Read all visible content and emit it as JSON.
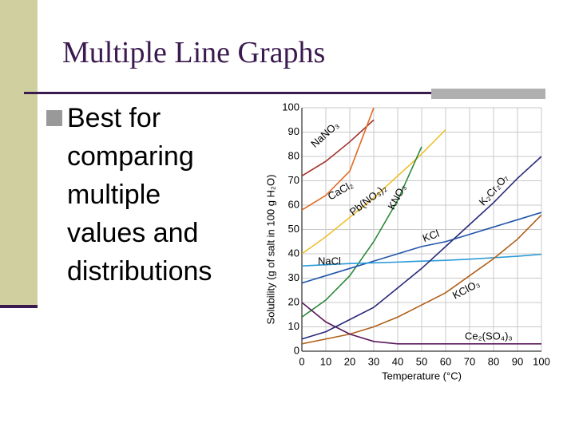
{
  "slide": {
    "title": "Multiple Line Graphs",
    "bullet": "Best for comparing multiple values and distributions"
  },
  "chart_data": {
    "type": "line",
    "x": [
      0,
      10,
      20,
      30,
      40,
      50,
      60,
      70,
      80,
      90,
      100
    ],
    "xlabel": "Temperature (°C)",
    "ylabel": "Solubility (g of salt in 100 g H₂O)",
    "xlim": [
      0,
      100
    ],
    "ylim": [
      0,
      100
    ],
    "xticks": [
      0,
      10,
      20,
      30,
      40,
      50,
      60,
      70,
      80,
      90,
      100
    ],
    "yticks": [
      0,
      10,
      20,
      30,
      40,
      50,
      60,
      70,
      80,
      90,
      100
    ],
    "grid": true,
    "series": [
      {
        "name": "NaNO₃",
        "color": "#a0302a",
        "values": [
          72,
          78,
          86,
          95,
          null,
          null,
          null,
          null,
          null,
          null,
          null
        ]
      },
      {
        "name": "CaCl₂",
        "color": "#e06a20",
        "values": [
          58,
          64,
          74,
          100,
          null,
          null,
          null,
          null,
          null,
          null,
          null
        ]
      },
      {
        "name": "Pb(NO₃)₂",
        "color": "#f0c030",
        "values": [
          40,
          47,
          55,
          63,
          72,
          81,
          91,
          null,
          null,
          null,
          null
        ]
      },
      {
        "name": "KNO₃",
        "color": "#2a8a3a",
        "values": [
          14,
          21,
          31,
          45,
          62,
          84,
          null,
          null,
          null,
          null,
          null
        ]
      },
      {
        "name": "KCl",
        "color": "#2255aa",
        "values": [
          28,
          31,
          34,
          37,
          40,
          43,
          45,
          48,
          51,
          54,
          57
        ]
      },
      {
        "name": "NaCl",
        "color": "#2a9ad8",
        "values": [
          35,
          35.5,
          36,
          36.3,
          36.6,
          37,
          37.3,
          37.8,
          38.4,
          39,
          39.8
        ]
      },
      {
        "name": "KClO₃",
        "color": "#b06018",
        "values": [
          3,
          5,
          7,
          10,
          14,
          19,
          24,
          31,
          38,
          46,
          56
        ]
      },
      {
        "name": "Ce₂(SO₄)₃",
        "color": "#5a1a5a",
        "values": [
          20,
          12,
          7,
          4,
          3,
          3,
          3,
          3,
          3,
          3,
          3
        ]
      },
      {
        "name": "K₂Cr₂O₇",
        "color": "#2a2a7a",
        "values": [
          5,
          8,
          13,
          18,
          26,
          34,
          43,
          52,
          61,
          71,
          80
        ]
      }
    ]
  }
}
